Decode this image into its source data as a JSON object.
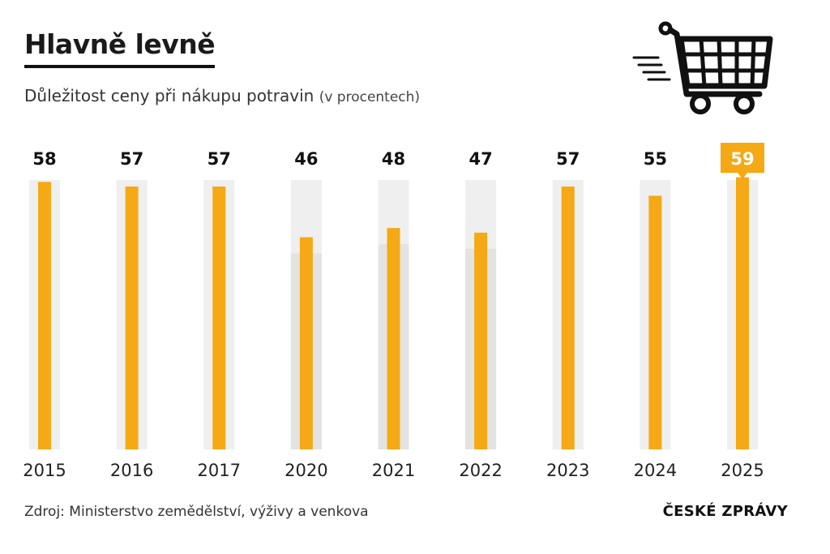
{
  "header": {
    "title": "Hlavně levně",
    "subtitle": "Důležitost ceny při nákupu potravin",
    "unit": "(v procentech)"
  },
  "icons": {
    "header_icon": "shopping-cart-icon"
  },
  "colors": {
    "bar": "#F5A914",
    "track": "#EFEFEF",
    "track_shade": "#E3E3E3",
    "highlight": "#F5A914"
  },
  "chart_data": {
    "type": "bar",
    "categories": [
      "2015",
      "2016",
      "2017",
      "2020",
      "2021",
      "2022",
      "2023",
      "2024",
      "2025"
    ],
    "values": [
      58,
      57,
      57,
      46,
      48,
      47,
      57,
      55,
      59
    ],
    "highlight_category": "2025",
    "ylim": [
      0,
      60
    ],
    "grid": false,
    "legend": "none"
  },
  "footer": {
    "source": "Zdroj: Ministerstvo zemědělství, výživy a venkova",
    "brand": "ČESKÉ ZPRÁVY"
  }
}
